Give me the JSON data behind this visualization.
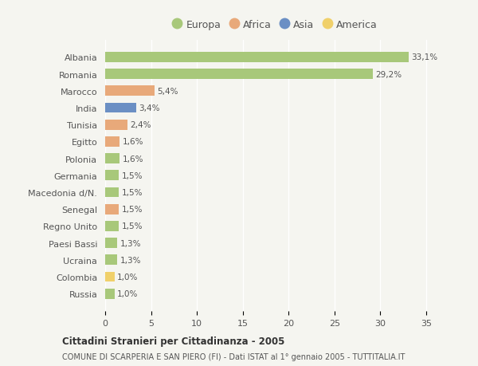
{
  "categories": [
    "Albania",
    "Romania",
    "Marocco",
    "India",
    "Tunisia",
    "Egitto",
    "Polonia",
    "Germania",
    "Macedonia d/N.",
    "Senegal",
    "Regno Unito",
    "Paesi Bassi",
    "Ucraina",
    "Colombia",
    "Russia"
  ],
  "values": [
    33.1,
    29.2,
    5.4,
    3.4,
    2.4,
    1.6,
    1.6,
    1.5,
    1.5,
    1.5,
    1.5,
    1.3,
    1.3,
    1.0,
    1.0
  ],
  "labels": [
    "33,1%",
    "29,2%",
    "5,4%",
    "3,4%",
    "2,4%",
    "1,6%",
    "1,6%",
    "1,5%",
    "1,5%",
    "1,5%",
    "1,5%",
    "1,3%",
    "1,3%",
    "1,0%",
    "1,0%"
  ],
  "continents": [
    "Europa",
    "Europa",
    "Africa",
    "Asia",
    "Africa",
    "Africa",
    "Europa",
    "Europa",
    "Europa",
    "Africa",
    "Europa",
    "Europa",
    "Europa",
    "America",
    "Europa"
  ],
  "colors": {
    "Europa": "#a8c87a",
    "Africa": "#e8a97a",
    "Asia": "#6b8fc4",
    "America": "#f0d06a"
  },
  "xlim": [
    0,
    37
  ],
  "xticks": [
    0,
    5,
    10,
    15,
    20,
    25,
    30,
    35
  ],
  "title": "Cittadini Stranieri per Cittadinanza - 2005",
  "subtitle": "COMUNE DI SCARPERIA E SAN PIERO (FI) - Dati ISTAT al 1° gennaio 2005 - TUTTITALIA.IT",
  "background_color": "#f5f5f0",
  "grid_color": "#ffffff",
  "bar_height": 0.6,
  "legend_order": [
    "Europa",
    "Africa",
    "Asia",
    "America"
  ]
}
